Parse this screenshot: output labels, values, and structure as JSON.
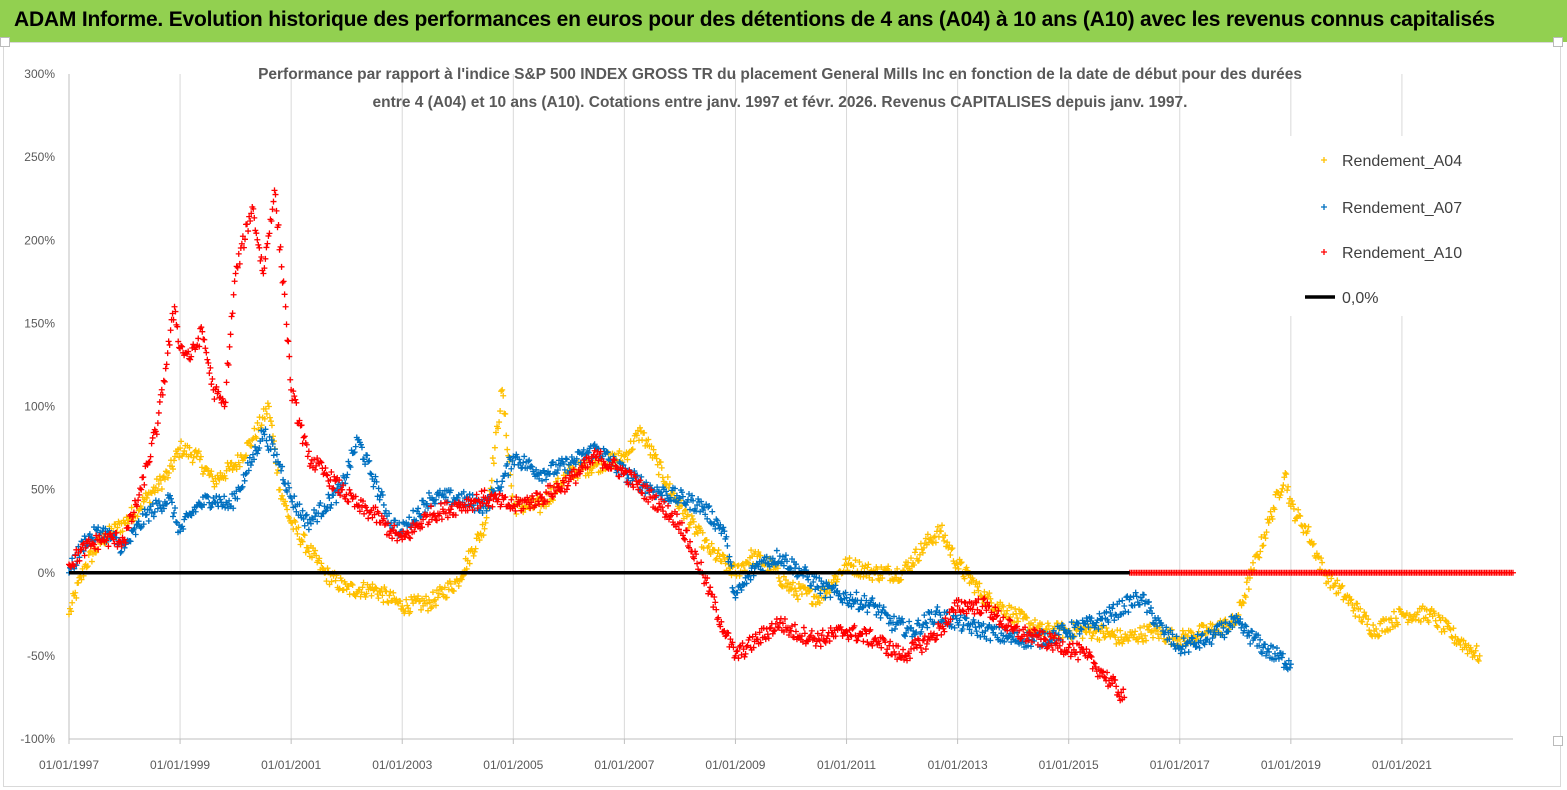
{
  "banner": {
    "text": "ADAM Informe. Evolution historique des performances en euros pour des détentions de 4 ans (A04) à 10 ans (A10) avec les revenus connus capitalisés",
    "color": "#92d050"
  },
  "chart_data": {
    "type": "scatter",
    "title_line1": "Performance par rapport à l'indice S&P 500 INDEX GROSS TR  du placement General Mills Inc en fonction de la date de début pour des durées",
    "title_line2": "entre 4 (A04) et 10 ans (A10).  Cotations entre janv. 1997 et févr. 2026. Revenus  CAPITALISES depuis janv. 1997.",
    "xlim": [
      1997.0,
      2023.0
    ],
    "ylim": [
      -100,
      300
    ],
    "y_ticks": [
      300,
      250,
      200,
      150,
      100,
      50,
      0,
      -50,
      -100
    ],
    "y_tick_labels": [
      "300%",
      "250%",
      "200%",
      "150%",
      "100%",
      "50%",
      "0%",
      "-50%",
      "-100%"
    ],
    "x_ticks": [
      1997,
      1999,
      2001,
      2003,
      2005,
      2007,
      2009,
      2011,
      2013,
      2015,
      2017,
      2019,
      2021
    ],
    "x_tick_labels": [
      "01/01/1997",
      "01/01/1999",
      "01/01/2001",
      "01/01/2003",
      "01/01/2005",
      "01/01/2007",
      "01/01/2009",
      "01/01/2011",
      "01/01/2013",
      "01/01/2015",
      "01/01/2017",
      "01/01/2019",
      "01/01/2021"
    ],
    "legend_position": "top-right",
    "series": [
      {
        "name": "Rendement_A04",
        "color": "#ffc000",
        "x": [
          1997.0,
          1997.3,
          1997.6,
          1998.0,
          1998.4,
          1998.8,
          1999.0,
          1999.3,
          1999.6,
          2000.0,
          2000.3,
          2000.6,
          2000.8,
          2001.0,
          2001.3,
          2001.6,
          2002.0,
          2002.5,
          2003.0,
          2003.5,
          2004.0,
          2004.5,
          2004.8,
          2005.0,
          2005.5,
          2006.0,
          2006.5,
          2007.0,
          2007.3,
          2007.6,
          2008.0,
          2008.5,
          2009.0,
          2009.3,
          2009.6,
          2010.0,
          2010.5,
          2011.0,
          2011.5,
          2012.0,
          2012.5,
          2012.7,
          2013.0,
          2013.5,
          2014.0,
          2014.5,
          2015.0,
          2015.5,
          2016.0,
          2016.5,
          2017.0,
          2017.5,
          2018.0,
          2018.3,
          2018.6,
          2018.9,
          2019.0,
          2019.3,
          2019.6,
          2020.0,
          2020.5,
          2021.0,
          2021.5,
          2022.0,
          2022.4
        ],
        "y": [
          -25,
          5,
          20,
          30,
          45,
          60,
          75,
          70,
          55,
          65,
          80,
          100,
          50,
          30,
          15,
          0,
          -10,
          -10,
          -20,
          -18,
          -5,
          30,
          110,
          40,
          40,
          60,
          65,
          70,
          85,
          65,
          40,
          15,
          0,
          10,
          5,
          -10,
          -15,
          5,
          0,
          0,
          20,
          25,
          5,
          -15,
          -25,
          -35,
          -35,
          -35,
          -40,
          -35,
          -40,
          -35,
          -30,
          0,
          30,
          60,
          40,
          25,
          0,
          -15,
          -35,
          -25,
          -25,
          -40,
          -50
        ]
      },
      {
        "name": "Rendement_A07",
        "color": "#0070c0",
        "x": [
          1997.0,
          1997.3,
          1997.6,
          1998.0,
          1998.4,
          1998.8,
          1999.0,
          1999.3,
          1999.6,
          1999.9,
          2000.2,
          2000.5,
          2000.8,
          2001.0,
          2001.3,
          2001.6,
          2001.9,
          2002.2,
          2002.5,
          2002.8,
          2003.0,
          2003.5,
          2004.0,
          2004.5,
          2004.8,
          2005.0,
          2005.5,
          2006.0,
          2006.5,
          2007.0,
          2007.5,
          2008.0,
          2008.4,
          2008.8,
          2009.0,
          2009.4,
          2009.8,
          2010.2,
          2010.6,
          2011.0,
          2011.5,
          2011.8,
          2012.2,
          2012.6,
          2013.0,
          2013.5,
          2014.0,
          2014.5,
          2015.0,
          2015.5,
          2016.0,
          2016.3,
          2016.7,
          2017.0,
          2017.5,
          2018.0,
          2018.5,
          2019.0
        ],
        "y": [
          0,
          20,
          25,
          15,
          35,
          45,
          25,
          40,
          45,
          40,
          60,
          85,
          65,
          45,
          30,
          40,
          50,
          80,
          55,
          30,
          25,
          45,
          45,
          40,
          55,
          70,
          60,
          65,
          75,
          60,
          50,
          45,
          40,
          25,
          -15,
          5,
          10,
          0,
          -10,
          -15,
          -20,
          -30,
          -35,
          -25,
          -30,
          -35,
          -40,
          -40,
          -35,
          -30,
          -20,
          -15,
          -35,
          -45,
          -40,
          -30,
          -45,
          -55
        ]
      },
      {
        "name": "Rendement_A10",
        "color": "#ff0000",
        "x": [
          1997.0,
          1997.3,
          1997.6,
          1998.0,
          1998.3,
          1998.6,
          1998.9,
          1999.0,
          1999.2,
          1999.4,
          1999.6,
          1999.8,
          2000.0,
          2000.3,
          2000.5,
          2000.7,
          2000.9,
          2001.0,
          2001.3,
          2001.6,
          2001.9,
          2002.2,
          2002.5,
          2002.8,
          2003.0,
          2003.5,
          2004.0,
          2004.5,
          2005.0,
          2005.5,
          2006.0,
          2006.5,
          2007.0,
          2007.5,
          2008.0,
          2008.4,
          2008.8,
          2009.0,
          2009.4,
          2009.8,
          2010.0,
          2010.5,
          2011.0,
          2011.5,
          2012.0,
          2012.5,
          2012.8,
          2013.0,
          2013.5,
          2014.0,
          2014.5,
          2015.0,
          2015.3,
          2015.6,
          2016.0
        ],
        "y": [
          5,
          15,
          20,
          20,
          50,
          90,
          160,
          135,
          130,
          145,
          110,
          100,
          180,
          220,
          180,
          230,
          160,
          110,
          70,
          60,
          50,
          40,
          35,
          25,
          20,
          35,
          40,
          45,
          40,
          45,
          55,
          70,
          60,
          45,
          30,
          0,
          -35,
          -50,
          -40,
          -30,
          -35,
          -40,
          -35,
          -40,
          -50,
          -40,
          -30,
          -20,
          -20,
          -35,
          -40,
          -45,
          -50,
          -60,
          -75
        ]
      },
      {
        "name": "Rendement_A10 (0%)",
        "color": "#ff0000",
        "x_range": [
          2016.1,
          2023.0
        ],
        "y": 0
      },
      {
        "name": "0,0%",
        "type": "line",
        "color": "#000000",
        "x": [
          1997.0,
          2016.1
        ],
        "y": [
          0,
          0
        ]
      }
    ],
    "legend": [
      {
        "label": "Rendement_A04",
        "marker": "+",
        "color": "#ffc000"
      },
      {
        "label": "Rendement_A07",
        "marker": "+",
        "color": "#0070c0"
      },
      {
        "label": "Rendement_A10",
        "marker": "+",
        "color": "#ff0000"
      },
      {
        "label": "0,0%",
        "marker": "line",
        "color": "#000000"
      }
    ]
  }
}
